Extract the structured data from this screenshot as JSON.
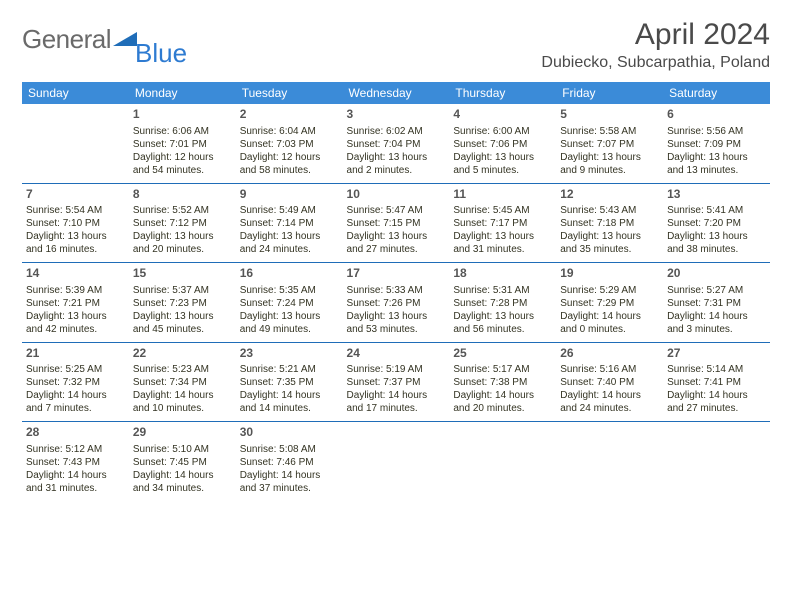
{
  "brand": {
    "part1": "General",
    "part2": "Blue"
  },
  "title": "April 2024",
  "location": "Dubiecko, Subcarpathia, Poland",
  "style": {
    "header_bg": "#3b8bd8",
    "header_fg": "#ffffff",
    "sep_color": "#1f6db8",
    "body_bg": "#ffffff",
    "text_color": "#333333",
    "daynum_color": "#555555",
    "title_color": "#4a4a4a",
    "title_fontsize": 30,
    "location_fontsize": 16,
    "th_fontsize": 12,
    "cell_fontsize": 10,
    "daynum_fontsize": 12
  },
  "weekdays": [
    "Sunday",
    "Monday",
    "Tuesday",
    "Wednesday",
    "Thursday",
    "Friday",
    "Saturday"
  ],
  "weeks": [
    [
      null,
      {
        "n": "1",
        "sr": "Sunrise: 6:06 AM",
        "ss": "Sunset: 7:01 PM",
        "dl": "Daylight: 12 hours and 54 minutes."
      },
      {
        "n": "2",
        "sr": "Sunrise: 6:04 AM",
        "ss": "Sunset: 7:03 PM",
        "dl": "Daylight: 12 hours and 58 minutes."
      },
      {
        "n": "3",
        "sr": "Sunrise: 6:02 AM",
        "ss": "Sunset: 7:04 PM",
        "dl": "Daylight: 13 hours and 2 minutes."
      },
      {
        "n": "4",
        "sr": "Sunrise: 6:00 AM",
        "ss": "Sunset: 7:06 PM",
        "dl": "Daylight: 13 hours and 5 minutes."
      },
      {
        "n": "5",
        "sr": "Sunrise: 5:58 AM",
        "ss": "Sunset: 7:07 PM",
        "dl": "Daylight: 13 hours and 9 minutes."
      },
      {
        "n": "6",
        "sr": "Sunrise: 5:56 AM",
        "ss": "Sunset: 7:09 PM",
        "dl": "Daylight: 13 hours and 13 minutes."
      }
    ],
    [
      {
        "n": "7",
        "sr": "Sunrise: 5:54 AM",
        "ss": "Sunset: 7:10 PM",
        "dl": "Daylight: 13 hours and 16 minutes."
      },
      {
        "n": "8",
        "sr": "Sunrise: 5:52 AM",
        "ss": "Sunset: 7:12 PM",
        "dl": "Daylight: 13 hours and 20 minutes."
      },
      {
        "n": "9",
        "sr": "Sunrise: 5:49 AM",
        "ss": "Sunset: 7:14 PM",
        "dl": "Daylight: 13 hours and 24 minutes."
      },
      {
        "n": "10",
        "sr": "Sunrise: 5:47 AM",
        "ss": "Sunset: 7:15 PM",
        "dl": "Daylight: 13 hours and 27 minutes."
      },
      {
        "n": "11",
        "sr": "Sunrise: 5:45 AM",
        "ss": "Sunset: 7:17 PM",
        "dl": "Daylight: 13 hours and 31 minutes."
      },
      {
        "n": "12",
        "sr": "Sunrise: 5:43 AM",
        "ss": "Sunset: 7:18 PM",
        "dl": "Daylight: 13 hours and 35 minutes."
      },
      {
        "n": "13",
        "sr": "Sunrise: 5:41 AM",
        "ss": "Sunset: 7:20 PM",
        "dl": "Daylight: 13 hours and 38 minutes."
      }
    ],
    [
      {
        "n": "14",
        "sr": "Sunrise: 5:39 AM",
        "ss": "Sunset: 7:21 PM",
        "dl": "Daylight: 13 hours and 42 minutes."
      },
      {
        "n": "15",
        "sr": "Sunrise: 5:37 AM",
        "ss": "Sunset: 7:23 PM",
        "dl": "Daylight: 13 hours and 45 minutes."
      },
      {
        "n": "16",
        "sr": "Sunrise: 5:35 AM",
        "ss": "Sunset: 7:24 PM",
        "dl": "Daylight: 13 hours and 49 minutes."
      },
      {
        "n": "17",
        "sr": "Sunrise: 5:33 AM",
        "ss": "Sunset: 7:26 PM",
        "dl": "Daylight: 13 hours and 53 minutes."
      },
      {
        "n": "18",
        "sr": "Sunrise: 5:31 AM",
        "ss": "Sunset: 7:28 PM",
        "dl": "Daylight: 13 hours and 56 minutes."
      },
      {
        "n": "19",
        "sr": "Sunrise: 5:29 AM",
        "ss": "Sunset: 7:29 PM",
        "dl": "Daylight: 14 hours and 0 minutes."
      },
      {
        "n": "20",
        "sr": "Sunrise: 5:27 AM",
        "ss": "Sunset: 7:31 PM",
        "dl": "Daylight: 14 hours and 3 minutes."
      }
    ],
    [
      {
        "n": "21",
        "sr": "Sunrise: 5:25 AM",
        "ss": "Sunset: 7:32 PM",
        "dl": "Daylight: 14 hours and 7 minutes."
      },
      {
        "n": "22",
        "sr": "Sunrise: 5:23 AM",
        "ss": "Sunset: 7:34 PM",
        "dl": "Daylight: 14 hours and 10 minutes."
      },
      {
        "n": "23",
        "sr": "Sunrise: 5:21 AM",
        "ss": "Sunset: 7:35 PM",
        "dl": "Daylight: 14 hours and 14 minutes."
      },
      {
        "n": "24",
        "sr": "Sunrise: 5:19 AM",
        "ss": "Sunset: 7:37 PM",
        "dl": "Daylight: 14 hours and 17 minutes."
      },
      {
        "n": "25",
        "sr": "Sunrise: 5:17 AM",
        "ss": "Sunset: 7:38 PM",
        "dl": "Daylight: 14 hours and 20 minutes."
      },
      {
        "n": "26",
        "sr": "Sunrise: 5:16 AM",
        "ss": "Sunset: 7:40 PM",
        "dl": "Daylight: 14 hours and 24 minutes."
      },
      {
        "n": "27",
        "sr": "Sunrise: 5:14 AM",
        "ss": "Sunset: 7:41 PM",
        "dl": "Daylight: 14 hours and 27 minutes."
      }
    ],
    [
      {
        "n": "28",
        "sr": "Sunrise: 5:12 AM",
        "ss": "Sunset: 7:43 PM",
        "dl": "Daylight: 14 hours and 31 minutes."
      },
      {
        "n": "29",
        "sr": "Sunrise: 5:10 AM",
        "ss": "Sunset: 7:45 PM",
        "dl": "Daylight: 14 hours and 34 minutes."
      },
      {
        "n": "30",
        "sr": "Sunrise: 5:08 AM",
        "ss": "Sunset: 7:46 PM",
        "dl": "Daylight: 14 hours and 37 minutes."
      },
      null,
      null,
      null,
      null
    ]
  ]
}
